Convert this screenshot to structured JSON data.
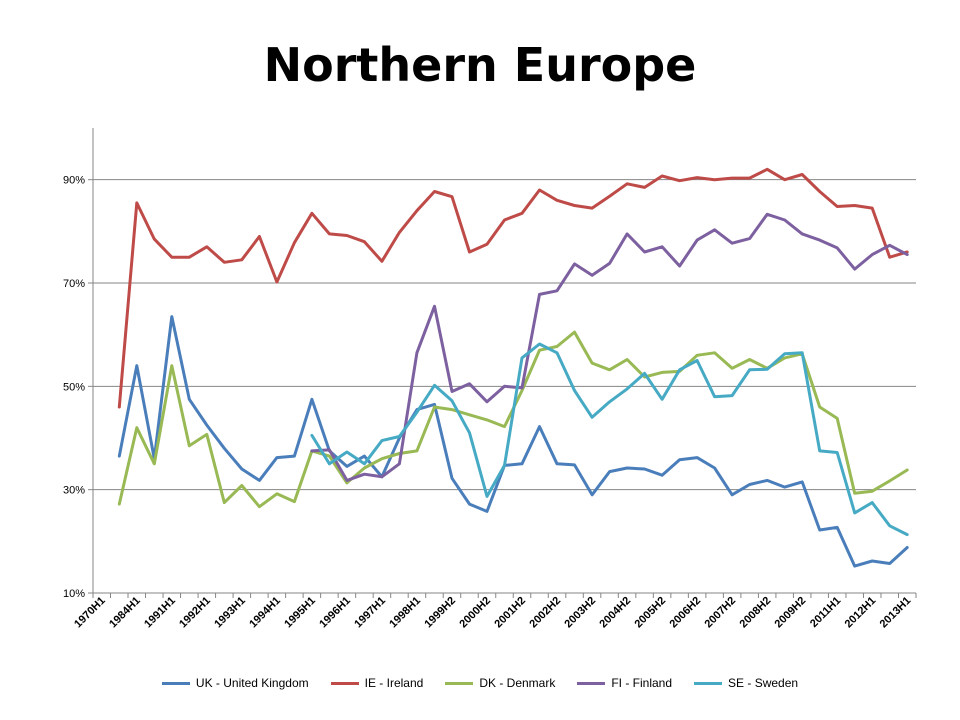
{
  "chart_data": {
    "type": "line",
    "title": "Northern Europe",
    "xlabel": "",
    "ylabel": "",
    "ylim": [
      10,
      100
    ],
    "y_ticks": [
      10,
      30,
      50,
      70,
      90
    ],
    "y_tick_labels": [
      "10%",
      "30%",
      "50%",
      "70%",
      "90%"
    ],
    "x_tick_labels": [
      "1970H1",
      "1984H1",
      "1991H1",
      "1992H1",
      "1993H1",
      "1994H1",
      "1995H1",
      "1996H1",
      "1997H1",
      "1998H1",
      "1999H2",
      "2000H2",
      "2001H2",
      "2002H2",
      "2003H2",
      "2004H2",
      "2005H2",
      "2006H2",
      "2007H2",
      "2008H2",
      "2009H2",
      "2011H1",
      "2012H1",
      "2013H1"
    ],
    "x_tick_positions": [
      0,
      2,
      4,
      6,
      8,
      10,
      12,
      14,
      16,
      18,
      20,
      22,
      24,
      26,
      28,
      30,
      32,
      34,
      36,
      38,
      40,
      42,
      44,
      46
    ],
    "n_points": 47,
    "grid": "horizontal",
    "legend_position": "bottom",
    "series": [
      {
        "name": "UK - United Kingdom",
        "color": "#4a7ebb",
        "start": 1,
        "values": [
          36.5,
          54,
          36,
          63.5,
          47.5,
          42.5,
          38,
          34,
          31.8,
          36.2,
          36.5,
          47.5,
          37.5,
          34.5,
          36.5,
          32.5,
          40,
          45.5,
          46.5,
          32.2,
          27.2,
          25.8,
          34.7,
          35,
          42.2,
          35,
          34.8,
          29,
          33.5,
          34.2,
          34,
          32.8,
          35.8,
          36.2,
          34.2,
          29,
          31,
          31.8,
          30.5,
          31.5,
          22.2,
          22.7,
          15.2,
          16.2,
          15.7,
          18.8
        ]
      },
      {
        "name": "IE - Ireland",
        "color": "#be4b48",
        "start": 1,
        "values": [
          46,
          85.5,
          78.5,
          75,
          75,
          77,
          74,
          74.5,
          79,
          70.2,
          77.8,
          83.5,
          79.5,
          79.2,
          78,
          74.2,
          79.8,
          84,
          87.7,
          86.7,
          76,
          77.5,
          82.2,
          83.5,
          88,
          86,
          85,
          84.5,
          86.8,
          89.2,
          88.5,
          90.7,
          89.8,
          90.4,
          90,
          90.3,
          90.3,
          92,
          90,
          91,
          87.7,
          84.8,
          85,
          84.5,
          75,
          76
        ]
      },
      {
        "name": "DK - Denmark",
        "color": "#98b954",
        "start": 1,
        "values": [
          27.2,
          42,
          35,
          54,
          38.5,
          40.7,
          27.5,
          30.8,
          26.7,
          29.2,
          27.7,
          37.5,
          36.5,
          31.3,
          34.2,
          36,
          37,
          37.5,
          46,
          45.5,
          44.5,
          43.5,
          42.2,
          49.2,
          57,
          57.7,
          60.5,
          54.5,
          53.2,
          55.2,
          51.8,
          52.7,
          52.9,
          56,
          56.5,
          53.5,
          55.2,
          53.5,
          55.5,
          56.3,
          46,
          43.8,
          29.3,
          29.7,
          31.7,
          33.8
        ]
      },
      {
        "name": "FI - Finland",
        "color": "#7d60a0",
        "start": 12,
        "values": [
          37.5,
          37.7,
          31.8,
          33,
          32.5,
          35,
          56.5,
          65.5,
          49,
          50.5,
          47,
          50,
          49.7,
          67.8,
          68.5,
          73.7,
          71.5,
          73.8,
          79.5,
          76,
          77,
          73.3,
          78.3,
          80.3,
          77.7,
          78.6,
          83.3,
          82.2,
          79.5,
          78.3,
          76.8,
          72.7,
          75.5,
          77.3,
          75.5
        ]
      },
      {
        "name": "SE - Sweden",
        "color": "#46aac5",
        "start": 12,
        "values": [
          40.5,
          35,
          37.3,
          35,
          39.5,
          40.3,
          45,
          50.2,
          47.2,
          41,
          28.7,
          34.7,
          55.5,
          58.2,
          56.5,
          49.2,
          44,
          47,
          49.5,
          52.5,
          47.5,
          53.2,
          55,
          48,
          48.2,
          53.2,
          53.3,
          56.3,
          56.5,
          37.5,
          37.2,
          25.5,
          27.5,
          23,
          21.3
        ]
      }
    ]
  }
}
